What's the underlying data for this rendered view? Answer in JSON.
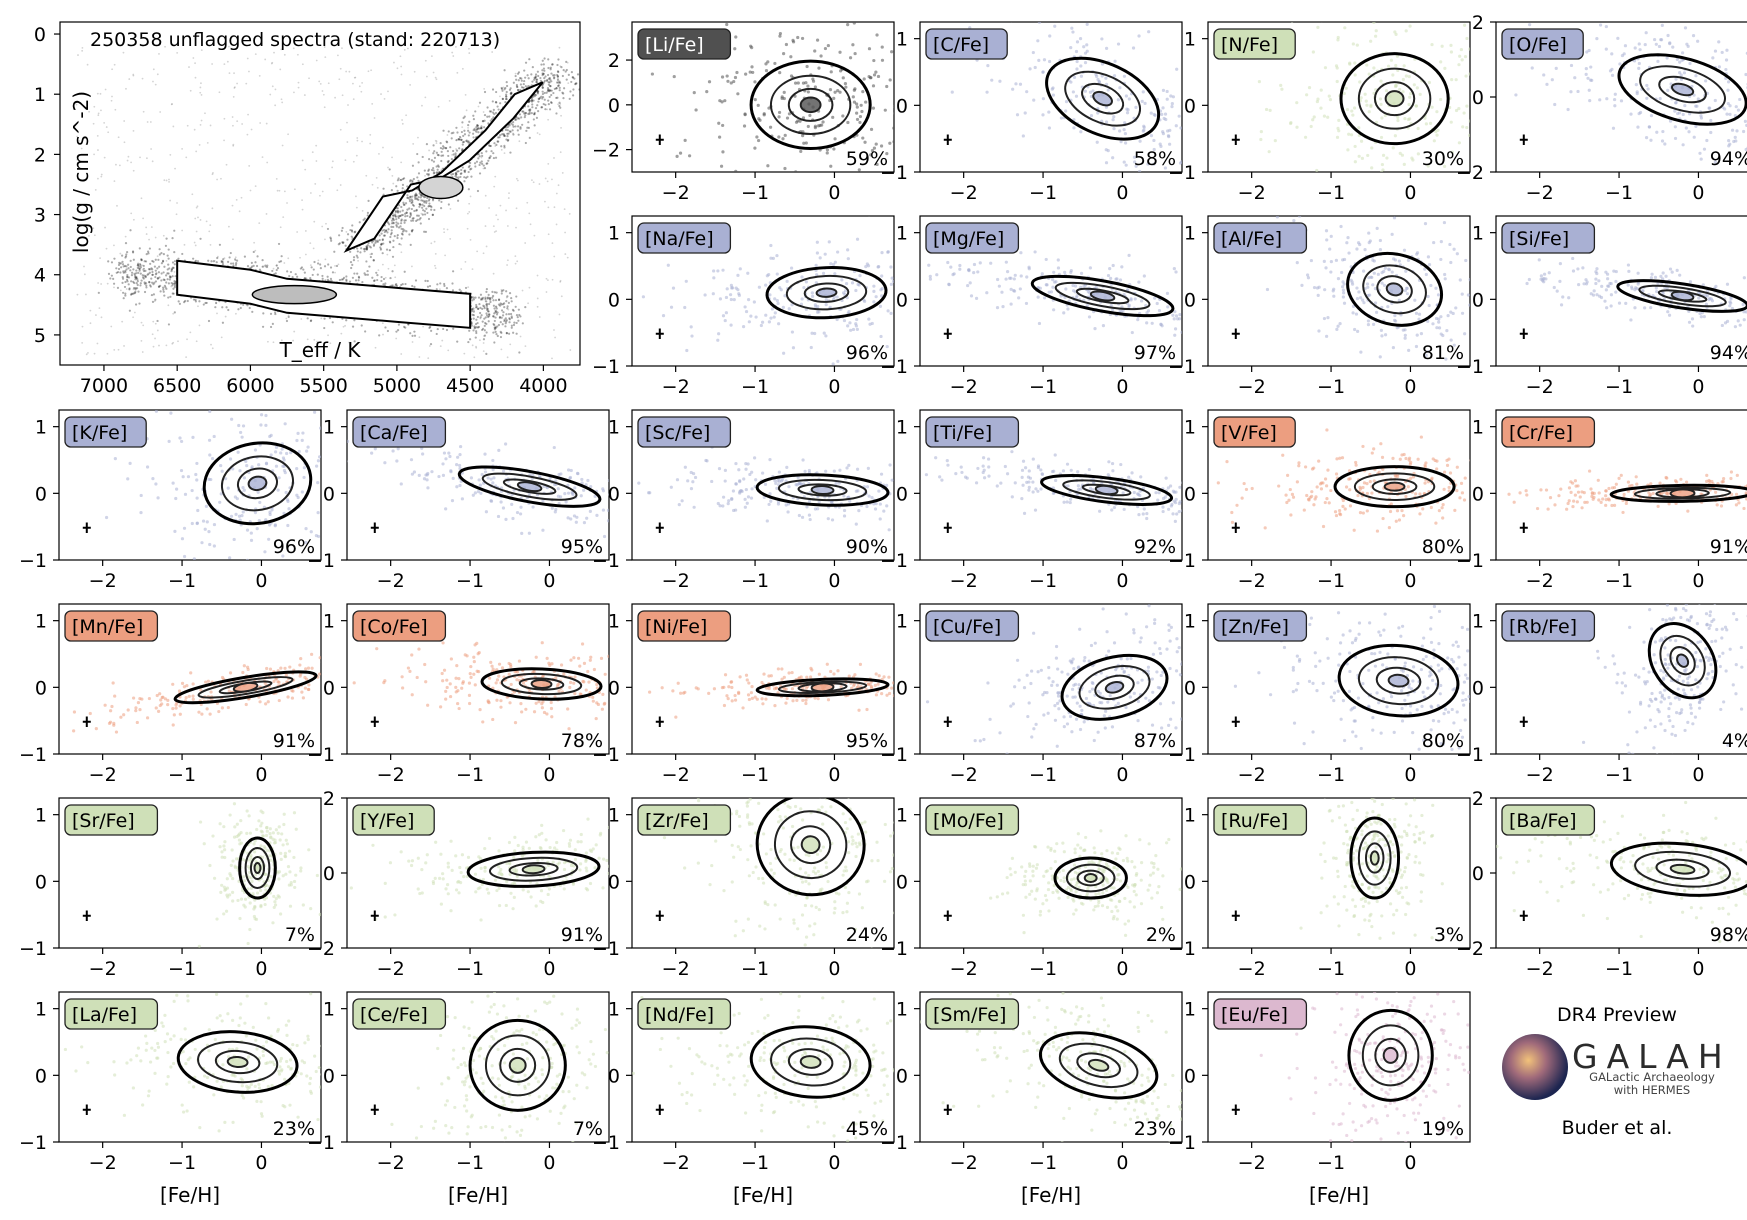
{
  "figure": {
    "side_panel": {
      "release": "DR4 Preview",
      "logo_text": "GALAH",
      "logo_subtitle_line1": "GALactic Archaeology",
      "logo_subtitle_line2": "with HERMES",
      "authors": "Buder et al."
    },
    "colors": {
      "black": "#222222",
      "blue": "#a9b0d3",
      "green": "#cfe0b8",
      "orange": "#ec9e80",
      "pink": "#dcb8cf",
      "label_dark": "#505050",
      "label_dark_text": "#ffffff"
    }
  },
  "chart_data": [
    {
      "id": "kiel",
      "type": "scatter",
      "title": "250358 unflagged spectra (stand: 220713)",
      "xlabel": "T_eff / K",
      "ylabel": "log(g / cm s^-2)",
      "xlim": [
        7300,
        3750
      ],
      "ylim": [
        5.5,
        -0.2
      ],
      "x_inverted": true,
      "y_inverted": true,
      "xticks": [
        7000,
        6500,
        6000,
        5500,
        5000,
        4500,
        4000
      ],
      "yticks": [
        0,
        1,
        2,
        3,
        4,
        5
      ],
      "density_ridge": [
        {
          "teff": 6500,
          "logg": 4.05
        },
        {
          "teff": 6000,
          "logg": 4.2
        },
        {
          "teff": 5750,
          "logg": 4.35
        },
        {
          "teff": 5500,
          "logg": 4.4
        },
        {
          "teff": 5000,
          "logg": 4.5
        },
        {
          "teff": 4500,
          "logg": 4.6
        }
      ],
      "giant_branch": [
        {
          "teff": 5250,
          "logg": 3.5
        },
        {
          "teff": 5000,
          "logg": 2.6
        },
        {
          "teff": 4800,
          "logg": 2.5
        },
        {
          "teff": 4600,
          "logg": 2.2
        },
        {
          "teff": 4300,
          "logg": 1.5
        },
        {
          "teff": 4100,
          "logg": 0.9
        }
      ]
    },
    {
      "id": "Li",
      "type": "scatter",
      "label": "[Li/Fe]",
      "color": "label_dark",
      "percent": "59%",
      "ylim": [
        -3,
        3.7
      ],
      "yticks": [
        -2,
        0,
        2
      ],
      "xlim": [
        -2.55,
        0.75
      ],
      "xticks": [
        -2,
        -1,
        0
      ],
      "center": [
        -0.3,
        0.0
      ],
      "spread": [
        0.5,
        1.3
      ],
      "tilt": 0.0
    },
    {
      "id": "C",
      "type": "scatter",
      "label": "[C/Fe]",
      "color": "blue",
      "percent": "58%",
      "ylim": [
        -1,
        1.25
      ],
      "yticks": [
        -1,
        0,
        1
      ],
      "xlim": [
        -2.55,
        0.75
      ],
      "xticks": [
        -2,
        -1,
        0
      ],
      "center": [
        -0.25,
        0.1
      ],
      "spread": [
        0.5,
        0.35
      ],
      "tilt": -0.55
    },
    {
      "id": "N",
      "type": "scatter",
      "label": "[N/Fe]",
      "color": "green",
      "percent": "30%",
      "ylim": [
        -1,
        1.25
      ],
      "yticks": [
        -1,
        0,
        1
      ],
      "xlim": [
        -2.55,
        0.75
      ],
      "xticks": [
        -2,
        -1,
        0
      ],
      "center": [
        -0.2,
        0.1
      ],
      "spread": [
        0.45,
        0.45
      ],
      "tilt": 0.0
    },
    {
      "id": "O",
      "type": "scatter",
      "label": "[O/Fe]",
      "color": "blue",
      "percent": "94%",
      "ylim": [
        -2,
        2
      ],
      "yticks": [
        -2,
        0,
        2
      ],
      "xlim": [
        -2.55,
        0.75
      ],
      "xticks": [
        -2,
        -1,
        0
      ],
      "center": [
        -0.2,
        0.2
      ],
      "spread": [
        0.55,
        0.55
      ],
      "tilt": -0.6
    },
    {
      "id": "Na",
      "type": "scatter",
      "label": "[Na/Fe]",
      "color": "blue",
      "percent": "96%",
      "ylim": [
        -1,
        1.25
      ],
      "yticks": [
        -1,
        0,
        1
      ],
      "xlim": [
        -2.55,
        0.75
      ],
      "xticks": [
        -2,
        -1,
        0
      ],
      "center": [
        -0.1,
        0.1
      ],
      "spread": [
        0.5,
        0.25
      ],
      "tilt": 0.05
    },
    {
      "id": "Mg",
      "type": "scatter",
      "label": "[Mg/Fe]",
      "color": "blue",
      "percent": "97%",
      "ylim": [
        -1,
        1.25
      ],
      "yticks": [
        -1,
        0,
        1
      ],
      "xlim": [
        -2.55,
        0.75
      ],
      "xticks": [
        -2,
        -1,
        0
      ],
      "center": [
        -0.25,
        0.05
      ],
      "spread": [
        0.6,
        0.15
      ],
      "tilt": -0.22
    },
    {
      "id": "Al",
      "type": "scatter",
      "label": "[Al/Fe]",
      "color": "blue",
      "percent": "81%",
      "ylim": [
        -1,
        1.25
      ],
      "yticks": [
        -1,
        0,
        1
      ],
      "xlim": [
        -2.55,
        0.75
      ],
      "xticks": [
        -2,
        -1,
        0
      ],
      "center": [
        -0.2,
        0.15
      ],
      "spread": [
        0.4,
        0.35
      ],
      "tilt": -0.3
    },
    {
      "id": "Si",
      "type": "scatter",
      "label": "[Si/Fe]",
      "color": "blue",
      "percent": "94%",
      "ylim": [
        -1,
        1.25
      ],
      "yticks": [
        -1,
        0,
        1
      ],
      "xlim": [
        -2.55,
        0.75
      ],
      "xticks": [
        -2,
        -1,
        0
      ],
      "center": [
        -0.2,
        0.05
      ],
      "spread": [
        0.55,
        0.12
      ],
      "tilt": -0.18
    },
    {
      "id": "K",
      "type": "scatter",
      "label": "[K/Fe]",
      "color": "blue",
      "percent": "96%",
      "ylim": [
        -1,
        1.25
      ],
      "yticks": [
        -1,
        0,
        1
      ],
      "xlim": [
        -2.55,
        0.75
      ],
      "xticks": [
        -2,
        -1,
        0
      ],
      "center": [
        -0.05,
        0.15
      ],
      "spread": [
        0.45,
        0.4
      ],
      "tilt": 0.2
    },
    {
      "id": "Ca",
      "type": "scatter",
      "label": "[Ca/Fe]",
      "color": "blue",
      "percent": "95%",
      "ylim": [
        -1,
        1.25
      ],
      "yticks": [
        -1,
        0,
        1
      ],
      "xlim": [
        -2.55,
        0.75
      ],
      "xticks": [
        -2,
        -1,
        0
      ],
      "center": [
        -0.25,
        0.1
      ],
      "spread": [
        0.6,
        0.15
      ],
      "tilt": -0.22
    },
    {
      "id": "Sc",
      "type": "scatter",
      "label": "[Sc/Fe]",
      "color": "blue",
      "percent": "90%",
      "ylim": [
        -1,
        1.25
      ],
      "yticks": [
        -1,
        0,
        1
      ],
      "xlim": [
        -2.55,
        0.75
      ],
      "xticks": [
        -2,
        -1,
        0
      ],
      "center": [
        -0.15,
        0.05
      ],
      "spread": [
        0.55,
        0.15
      ],
      "tilt": -0.05
    },
    {
      "id": "Ti",
      "type": "scatter",
      "label": "[Ti/Fe]",
      "color": "blue",
      "percent": "92%",
      "ylim": [
        -1,
        1.25
      ],
      "yticks": [
        -1,
        0,
        1
      ],
      "xlim": [
        -2.55,
        0.75
      ],
      "xticks": [
        -2,
        -1,
        0
      ],
      "center": [
        -0.2,
        0.05
      ],
      "spread": [
        0.55,
        0.12
      ],
      "tilt": -0.15
    },
    {
      "id": "V",
      "type": "scatter",
      "label": "[V/Fe]",
      "color": "orange",
      "percent": "80%",
      "ylim": [
        -1,
        1.25
      ],
      "yticks": [
        -1,
        0,
        1
      ],
      "xlim": [
        -2.55,
        0.75
      ],
      "xticks": [
        -2,
        -1,
        0
      ],
      "center": [
        -0.2,
        0.1
      ],
      "spread": [
        0.5,
        0.2
      ],
      "tilt": 0.0
    },
    {
      "id": "Cr",
      "type": "scatter",
      "label": "[Cr/Fe]",
      "color": "orange",
      "percent": "91%",
      "ylim": [
        -1,
        1.25
      ],
      "yticks": [
        -1,
        0,
        1
      ],
      "xlim": [
        -2.55,
        0.75
      ],
      "xticks": [
        -2,
        -1,
        0
      ],
      "center": [
        -0.2,
        0.0
      ],
      "spread": [
        0.6,
        0.08
      ],
      "tilt": 0.02
    },
    {
      "id": "Mn",
      "type": "scatter",
      "label": "[Mn/Fe]",
      "color": "orange",
      "percent": "91%",
      "ylim": [
        -1,
        1.25
      ],
      "yticks": [
        -1,
        0,
        1
      ],
      "xlim": [
        -2.55,
        0.75
      ],
      "xticks": [
        -2,
        -1,
        0
      ],
      "center": [
        -0.2,
        0.0
      ],
      "spread": [
        0.6,
        0.1
      ],
      "tilt": 0.2
    },
    {
      "id": "Co",
      "type": "scatter",
      "label": "[Co/Fe]",
      "color": "orange",
      "percent": "78%",
      "ylim": [
        -1,
        1.25
      ],
      "yticks": [
        -1,
        0,
        1
      ],
      "xlim": [
        -2.55,
        0.75
      ],
      "xticks": [
        -2,
        -1,
        0
      ],
      "center": [
        -0.1,
        0.05
      ],
      "spread": [
        0.5,
        0.15
      ],
      "tilt": -0.05
    },
    {
      "id": "Ni",
      "type": "scatter",
      "label": "[Ni/Fe]",
      "color": "orange",
      "percent": "95%",
      "ylim": [
        -1,
        1.25
      ],
      "yticks": [
        -1,
        0,
        1
      ],
      "xlim": [
        -2.55,
        0.75
      ],
      "xticks": [
        -2,
        -1,
        0
      ],
      "center": [
        -0.15,
        0.0
      ],
      "spread": [
        0.55,
        0.08
      ],
      "tilt": 0.05
    },
    {
      "id": "Cu",
      "type": "scatter",
      "label": "[Cu/Fe]",
      "color": "blue",
      "percent": "87%",
      "ylim": [
        -1,
        1.25
      ],
      "yticks": [
        -1,
        0,
        1
      ],
      "xlim": [
        -2.55,
        0.75
      ],
      "xticks": [
        -2,
        -1,
        0
      ],
      "center": [
        -0.1,
        0.0
      ],
      "spread": [
        0.45,
        0.3
      ],
      "tilt": 0.3
    },
    {
      "id": "Zn",
      "type": "scatter",
      "label": "[Zn/Fe]",
      "color": "blue",
      "percent": "80%",
      "ylim": [
        -1,
        1.25
      ],
      "yticks": [
        -1,
        0,
        1
      ],
      "xlim": [
        -2.55,
        0.75
      ],
      "xticks": [
        -2,
        -1,
        0
      ],
      "center": [
        -0.15,
        0.1
      ],
      "spread": [
        0.5,
        0.35
      ],
      "tilt": -0.1
    },
    {
      "id": "Rb",
      "type": "scatter",
      "label": "[Rb/Fe]",
      "color": "blue",
      "percent": "4%",
      "ylim": [
        -1,
        1.25
      ],
      "yticks": [
        -1,
        0,
        1
      ],
      "xlim": [
        -2.55,
        0.75
      ],
      "xticks": [
        -2,
        -1,
        0
      ],
      "center": [
        -0.2,
        0.4
      ],
      "spread": [
        0.25,
        0.4
      ],
      "tilt": 0.8
    },
    {
      "id": "Sr",
      "type": "scatter",
      "label": "[Sr/Fe]",
      "color": "green",
      "percent": "7%",
      "ylim": [
        -1,
        1.25
      ],
      "yticks": [
        -1,
        0,
        1
      ],
      "xlim": [
        -2.55,
        0.75
      ],
      "xticks": [
        -2,
        -1,
        0
      ],
      "center": [
        -0.05,
        0.2
      ],
      "spread": [
        0.15,
        0.3
      ],
      "tilt": 0.0
    },
    {
      "id": "Y",
      "type": "scatter",
      "label": "[Y/Fe]",
      "color": "green",
      "percent": "91%",
      "ylim": [
        -2,
        2
      ],
      "yticks": [
        -2,
        0,
        2
      ],
      "xlim": [
        -2.55,
        0.75
      ],
      "xticks": [
        -2,
        -1,
        0
      ],
      "center": [
        -0.2,
        0.1
      ],
      "spread": [
        0.55,
        0.3
      ],
      "tilt": 0.1
    },
    {
      "id": "Zr",
      "type": "scatter",
      "label": "[Zr/Fe]",
      "color": "green",
      "percent": "24%",
      "ylim": [
        -1,
        1.25
      ],
      "yticks": [
        -1,
        0,
        1
      ],
      "xlim": [
        -2.55,
        0.75
      ],
      "xticks": [
        -2,
        -1,
        0
      ],
      "center": [
        -0.3,
        0.55
      ],
      "spread": [
        0.45,
        0.5
      ],
      "tilt": -0.2
    },
    {
      "id": "Mo",
      "type": "scatter",
      "label": "[Mo/Fe]",
      "color": "green",
      "percent": "2%",
      "ylim": [
        -1,
        1.25
      ],
      "yticks": [
        -1,
        0,
        1
      ],
      "xlim": [
        -2.55,
        0.75
      ],
      "xticks": [
        -2,
        -1,
        0
      ],
      "center": [
        -0.4,
        0.05
      ],
      "spread": [
        0.3,
        0.2
      ],
      "tilt": 0.0
    },
    {
      "id": "Ru",
      "type": "scatter",
      "label": "[Ru/Fe]",
      "color": "green",
      "percent": "3%",
      "ylim": [
        -1,
        1.25
      ],
      "yticks": [
        -1,
        0,
        1
      ],
      "xlim": [
        -2.55,
        0.75
      ],
      "xticks": [
        -2,
        -1,
        0
      ],
      "center": [
        -0.45,
        0.35
      ],
      "spread": [
        0.2,
        0.4
      ],
      "tilt": 0.0
    },
    {
      "id": "Ba",
      "type": "scatter",
      "label": "[Ba/Fe]",
      "color": "green",
      "percent": "98%",
      "ylim": [
        -2,
        2
      ],
      "yticks": [
        -2,
        0,
        2
      ],
      "xlim": [
        -2.55,
        0.75
      ],
      "xticks": [
        -2,
        -1,
        0
      ],
      "center": [
        -0.2,
        0.1
      ],
      "spread": [
        0.6,
        0.45
      ],
      "tilt": -0.2
    },
    {
      "id": "La",
      "type": "scatter",
      "label": "[La/Fe]",
      "color": "green",
      "percent": "23%",
      "ylim": [
        -1,
        1.25
      ],
      "yticks": [
        -1,
        0,
        1
      ],
      "xlim": [
        -2.55,
        0.75
      ],
      "xticks": [
        -2,
        -1,
        0
      ],
      "center": [
        -0.3,
        0.2
      ],
      "spread": [
        0.5,
        0.3
      ],
      "tilt": -0.1
    },
    {
      "id": "Ce",
      "type": "scatter",
      "label": "[Ce/Fe]",
      "color": "green",
      "percent": "7%",
      "ylim": [
        -1,
        1.25
      ],
      "yticks": [
        -1,
        0,
        1
      ],
      "xlim": [
        -2.55,
        0.75
      ],
      "xticks": [
        -2,
        -1,
        0
      ],
      "center": [
        -0.4,
        0.15
      ],
      "spread": [
        0.4,
        0.45
      ],
      "tilt": 0.0
    },
    {
      "id": "Nd",
      "type": "scatter",
      "label": "[Nd/Fe]",
      "color": "green",
      "percent": "45%",
      "ylim": [
        -1,
        1.25
      ],
      "yticks": [
        -1,
        0,
        1
      ],
      "xlim": [
        -2.55,
        0.75
      ],
      "xticks": [
        -2,
        -1,
        0
      ],
      "center": [
        -0.3,
        0.2
      ],
      "spread": [
        0.5,
        0.35
      ],
      "tilt": -0.1
    },
    {
      "id": "Sm",
      "type": "scatter",
      "label": "[Sm/Fe]",
      "color": "green",
      "percent": "23%",
      "ylim": [
        -1,
        1.25
      ],
      "yticks": [
        -1,
        0,
        1
      ],
      "xlim": [
        -2.55,
        0.75
      ],
      "xticks": [
        -2,
        -1,
        0
      ],
      "center": [
        -0.3,
        0.15
      ],
      "spread": [
        0.5,
        0.3
      ],
      "tilt": -0.3
    },
    {
      "id": "Eu",
      "type": "scatter",
      "label": "[Eu/Fe]",
      "color": "pink",
      "percent": "19%",
      "ylim": [
        -1,
        1.25
      ],
      "yticks": [
        -1,
        0,
        1
      ],
      "xlim": [
        -2.55,
        0.75
      ],
      "xticks": [
        -2,
        -1,
        0
      ],
      "center": [
        -0.25,
        0.3
      ],
      "spread": [
        0.35,
        0.45
      ],
      "tilt": 0.0
    }
  ],
  "axis_labels": {
    "feh": "[Fe/H]"
  }
}
